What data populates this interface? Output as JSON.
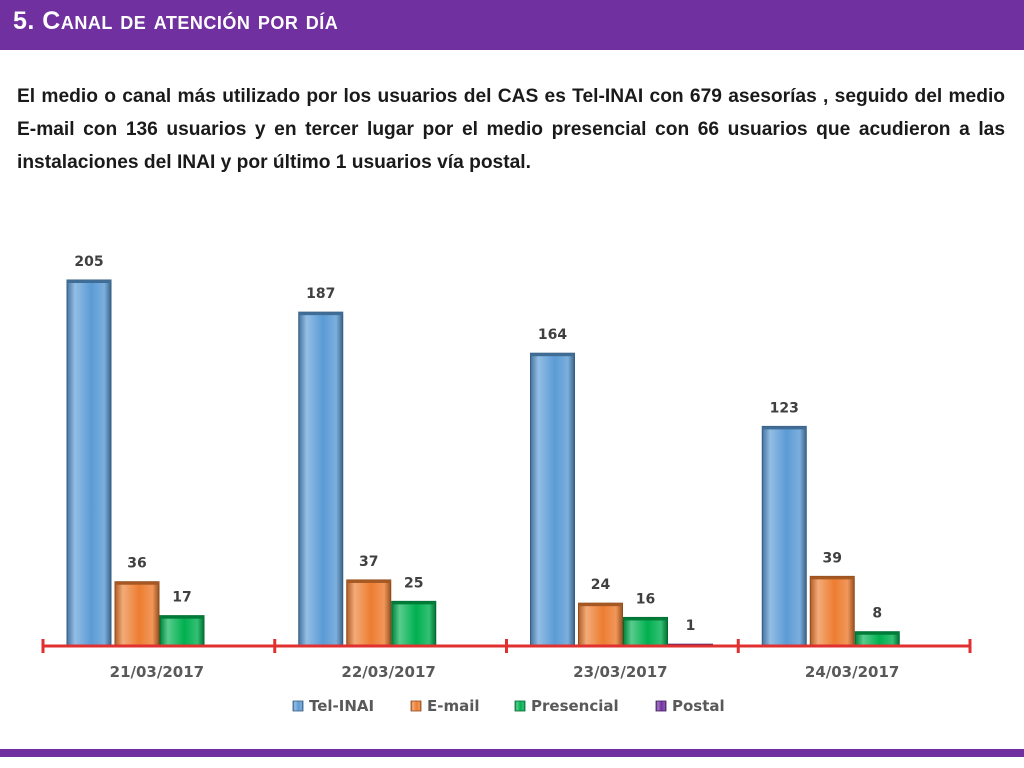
{
  "slide": {
    "title": "5. Canal de atención por día",
    "body": "El medio o canal más utilizado por los usuarios del CAS es Tel-INAI con 679 asesorías , seguido del medio E-mail con 136 usuarios y en tercer lugar por el medio presencial con 66 usuarios que acudieron a las instalaciones del INAI y por último 1 usuarios vía postal."
  },
  "colors": {
    "accent": "#7030a0",
    "axis": "#e03030",
    "tel_inai": "#5b9bd5",
    "email": "#ed7d31",
    "presencial": "#00b050",
    "postal": "#7030a0"
  },
  "chart_data": {
    "type": "bar",
    "categories": [
      "21/03/2017",
      "22/03/2017",
      "23/03/2017",
      "24/03/2017"
    ],
    "series": [
      {
        "name": "Tel-INAI",
        "values": [
          205,
          187,
          164,
          123
        ]
      },
      {
        "name": "E-mail",
        "values": [
          36,
          37,
          24,
          39
        ]
      },
      {
        "name": "Presencial",
        "values": [
          17,
          25,
          16,
          8
        ]
      },
      {
        "name": "Postal",
        "values": [
          null,
          null,
          1,
          null
        ]
      }
    ],
    "data_labels": true,
    "legend": "bottom",
    "grid": false
  }
}
